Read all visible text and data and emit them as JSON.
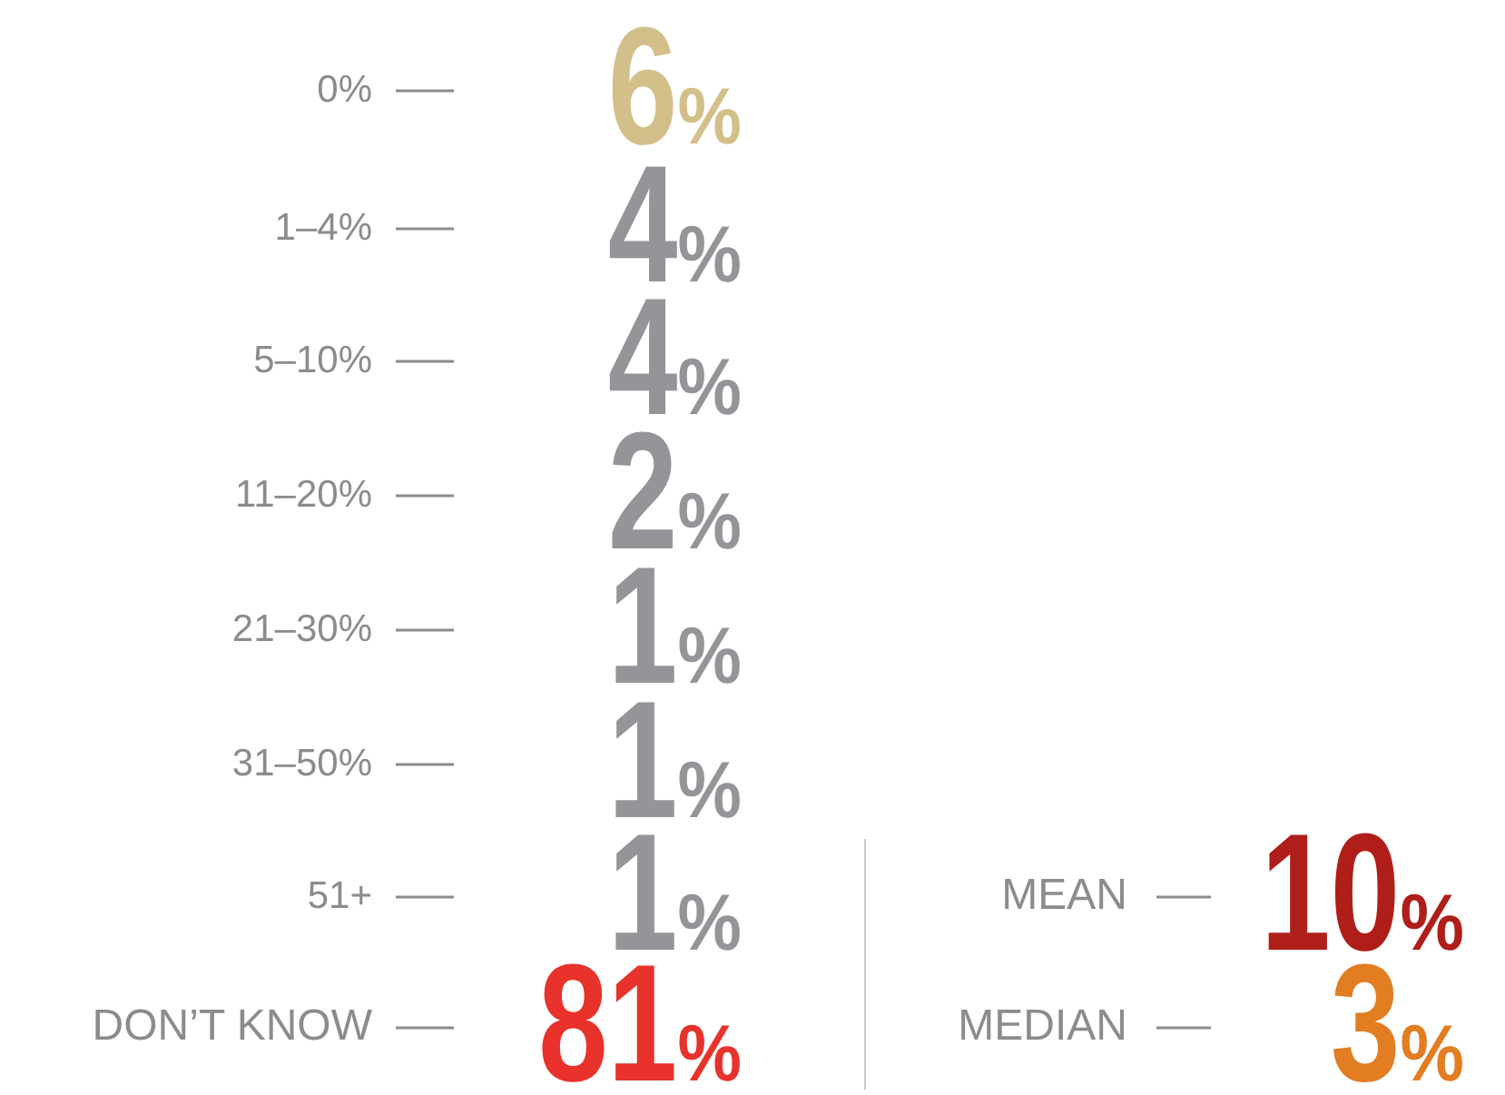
{
  "chart_data": [
    {
      "type": "other",
      "categories": [
        "0%",
        "1–4%",
        "5–10%",
        "11–20%",
        "21–30%",
        "31–50%",
        "51+",
        "DON’T KNOW"
      ],
      "values": [
        6,
        4,
        4,
        2,
        1,
        1,
        1,
        81
      ],
      "value_labels": [
        "6%",
        "4%",
        "4%",
        "2%",
        "1%",
        "1%",
        "1%",
        "81%"
      ],
      "colors": [
        "#d3bf8a",
        "#939598",
        "#939598",
        "#939598",
        "#939598",
        "#939598",
        "#939598",
        "#e8322b"
      ]
    },
    {
      "type": "other",
      "categories": [
        "MEAN",
        "MEDIAN"
      ],
      "values": [
        10,
        3
      ],
      "value_labels": [
        "10%",
        "3%"
      ],
      "colors": [
        "#b01e19",
        "#e27d22"
      ]
    }
  ]
}
